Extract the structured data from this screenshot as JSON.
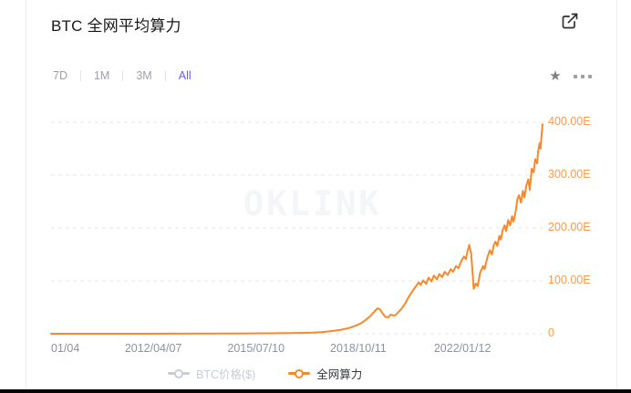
{
  "header": {
    "title": "BTC 全网平均算力"
  },
  "toolbar": {
    "ranges": [
      {
        "label": "7D",
        "active": false
      },
      {
        "label": "1M",
        "active": false
      },
      {
        "label": "3M",
        "active": false
      },
      {
        "label": "All",
        "active": true
      }
    ]
  },
  "icons": {
    "external_link": "open-in-new-window",
    "star": "★",
    "more": "ellipsis-menu"
  },
  "colors": {
    "line_orange": "#F7882B",
    "y_label_orange": "#F79B4E",
    "active_tab_purple": "#6461E6",
    "x_label_gray": "#8A93A6",
    "grid_gray": "#E3E5EA",
    "inactive_legend_gray": "#C9CDD6",
    "watermark_gray": "#F4F5F8"
  },
  "chart_data": {
    "type": "line",
    "title": "BTC 全网平均算力",
    "watermark": "OKLINK",
    "y_unit": "E",
    "ylim": [
      0,
      430
    ],
    "grid": "dashed-horizontal",
    "legend_position": "bottom",
    "x_axis_note": "x values are percent of axis width; axis spans 2009/01/04 to right edge",
    "x_ticks": [
      {
        "label": "01/04",
        "pct": 0,
        "align": "left"
      },
      {
        "label": "2012/04/07",
        "pct": 20.8
      },
      {
        "label": "2015/07/10",
        "pct": 41.7
      },
      {
        "label": "2018/10/11",
        "pct": 62.5
      },
      {
        "label": "2022/01/12",
        "pct": 83.7
      }
    ],
    "y_ticks": [
      {
        "label": "400.00E",
        "value": 400
      },
      {
        "label": "300.00E",
        "value": 300
      },
      {
        "label": "200.00E",
        "value": 200
      },
      {
        "label": "100.00E",
        "value": 100
      },
      {
        "label": "0",
        "value": 0
      }
    ],
    "series": [
      {
        "name": "BTC价格($)",
        "active": false,
        "color": "#C9CDD6",
        "points": []
      },
      {
        "name": "全网算力",
        "active": true,
        "color": "#F7882B",
        "points": [
          [
            0,
            0
          ],
          [
            9,
            0
          ],
          [
            17.5,
            0
          ],
          [
            26,
            0.2
          ],
          [
            35.8,
            0.4
          ],
          [
            45,
            0.8
          ],
          [
            50.6,
            1.5
          ],
          [
            53.3,
            2
          ],
          [
            55.1,
            3
          ],
          [
            57,
            5
          ],
          [
            58.8,
            7
          ],
          [
            60.7,
            11
          ],
          [
            61.9,
            15
          ],
          [
            63.1,
            20
          ],
          [
            64,
            26
          ],
          [
            64.9,
            33
          ],
          [
            65.8,
            42
          ],
          [
            66.4,
            48
          ],
          [
            66.9,
            46
          ],
          [
            67.5,
            38
          ],
          [
            68,
            32
          ],
          [
            68.6,
            31
          ],
          [
            69.1,
            36
          ],
          [
            69.9,
            34
          ],
          [
            70.6,
            40
          ],
          [
            71.3,
            47
          ],
          [
            72.1,
            58
          ],
          [
            72.8,
            70
          ],
          [
            73.5,
            80
          ],
          [
            74.1,
            88
          ],
          [
            74.8,
            97
          ],
          [
            75.2,
            92
          ],
          [
            75.7,
            101
          ],
          [
            76.3,
            94
          ],
          [
            76.8,
            106
          ],
          [
            77.4,
            99
          ],
          [
            77.9,
            110
          ],
          [
            78.5,
            103
          ],
          [
            79,
            113
          ],
          [
            79.6,
            107
          ],
          [
            80.1,
            117
          ],
          [
            80.7,
            111
          ],
          [
            81.3,
            122
          ],
          [
            81.8,
            117
          ],
          [
            82.4,
            128
          ],
          [
            82.9,
            124
          ],
          [
            83.5,
            138
          ],
          [
            84,
            146
          ],
          [
            84.4,
            141
          ],
          [
            84.7,
            155
          ],
          [
            85.1,
            168
          ],
          [
            85.5,
            150
          ],
          [
            85.8,
            110
          ],
          [
            86,
            85
          ],
          [
            86.4,
            95
          ],
          [
            86.8,
            90
          ],
          [
            87.3,
            115
          ],
          [
            87.9,
            128
          ],
          [
            88.2,
            122
          ],
          [
            88.8,
            145
          ],
          [
            89.3,
            158
          ],
          [
            89.7,
            150
          ],
          [
            90.1,
            168
          ],
          [
            90.4,
            174
          ],
          [
            90.8,
            166
          ],
          [
            91.2,
            185
          ],
          [
            91.5,
            178
          ],
          [
            91.9,
            196
          ],
          [
            92.3,
            205
          ],
          [
            92.6,
            194
          ],
          [
            93,
            215
          ],
          [
            93.4,
            205
          ],
          [
            93.8,
            222
          ],
          [
            94.1,
            212
          ],
          [
            94.5,
            230
          ],
          [
            94.9,
            255
          ],
          [
            95.2,
            262
          ],
          [
            95.6,
            248
          ],
          [
            96,
            270
          ],
          [
            96.3,
            258
          ],
          [
            96.7,
            280
          ],
          [
            97.1,
            292
          ],
          [
            97.4,
            272
          ],
          [
            97.8,
            312
          ],
          [
            98.2,
            305
          ],
          [
            98.5,
            330
          ],
          [
            98.9,
            322
          ],
          [
            99.1,
            345
          ],
          [
            99.4,
            360
          ],
          [
            99.6,
            350
          ],
          [
            99.8,
            375
          ],
          [
            100,
            396
          ]
        ]
      }
    ]
  }
}
